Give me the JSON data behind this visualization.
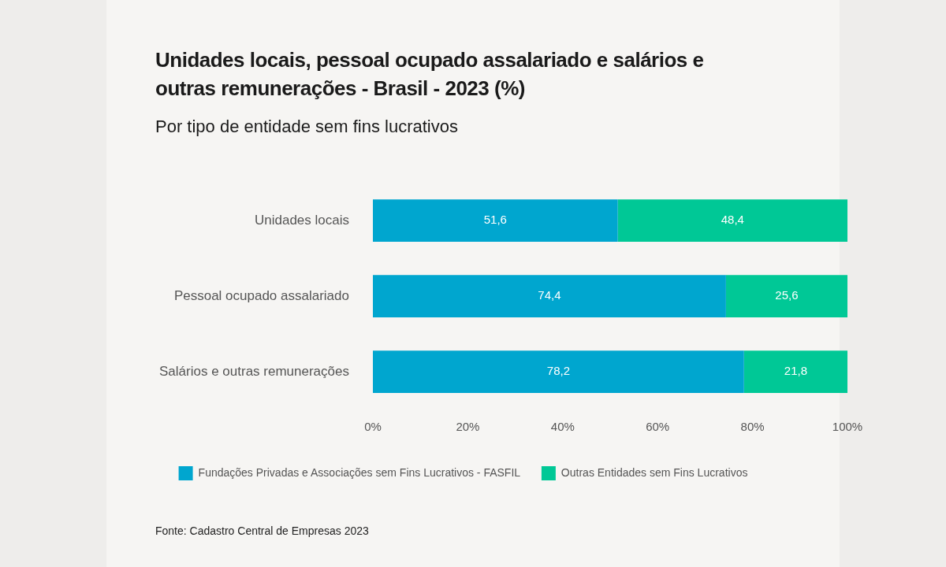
{
  "chart_data": {
    "type": "bar",
    "title": "Unidades locais, pessoal ocupado assalariado e salários e outras remunerações - Brasil - 2023 (%)",
    "subtitle": "Por tipo de entidade sem fins lucrativos",
    "categories": [
      "Unidades locais",
      "Pessoal ocupado assalariado",
      "Salários e outras remunerações"
    ],
    "series": [
      {
        "name": "Fundações Privadas e Associações sem Fins Lucrativos - FASFIL",
        "color": "#00a6cf",
        "values": [
          51.6,
          74.4,
          78.2
        ],
        "value_labels": [
          "51,6",
          "74,4",
          "78,2"
        ]
      },
      {
        "name": "Outras Entidades sem Fins Lucrativos",
        "color": "#00c896",
        "values": [
          48.4,
          25.6,
          21.8
        ],
        "value_labels": [
          "48,4",
          "25,6",
          "21,8"
        ]
      }
    ],
    "stacked": true,
    "orientation": "horizontal",
    "xlim": [
      0,
      100
    ],
    "xticks": [
      {
        "value": 0,
        "label": "0%"
      },
      {
        "value": 20,
        "label": "20%"
      },
      {
        "value": 40,
        "label": "40%"
      },
      {
        "value": 60,
        "label": "60%"
      },
      {
        "value": 80,
        "label": "80%"
      },
      {
        "value": 100,
        "label": "100%"
      }
    ],
    "legend": "bottom",
    "grid": false,
    "annotations": [
      "Fonte:  Cadastro Central de Empresas 2023"
    ]
  }
}
